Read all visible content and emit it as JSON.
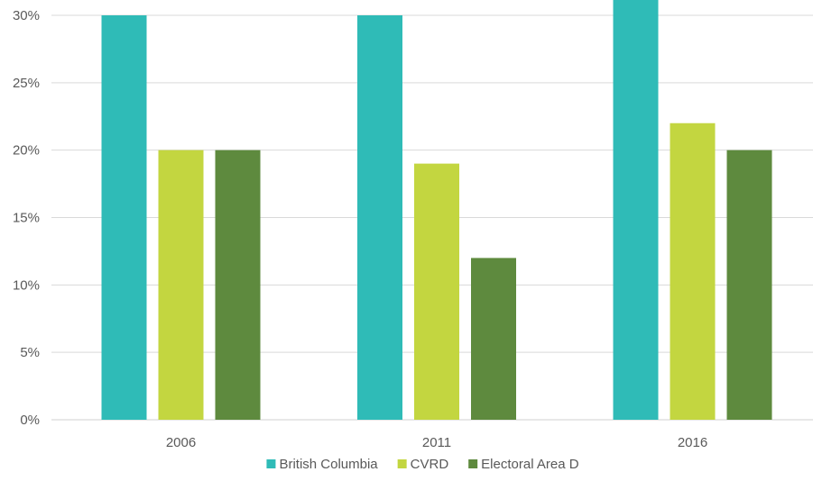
{
  "chart_data": {
    "type": "bar",
    "title": "",
    "xlabel": "",
    "ylabel": "",
    "categories": [
      "2006",
      "2011",
      "2016"
    ],
    "ylim": [
      0,
      30
    ],
    "yticks": [
      0,
      5,
      10,
      15,
      20,
      25,
      30
    ],
    "ytick_labels": [
      "0%",
      "5%",
      "10%",
      "15%",
      "20%",
      "25%",
      "30%"
    ],
    "grid": true,
    "legend_position": "bottom",
    "series": [
      {
        "name": "British Columbia",
        "values": [
          30,
          30,
          31.5
        ],
        "color": "#2fbbb7"
      },
      {
        "name": "CVRD",
        "values": [
          20,
          19,
          22
        ],
        "color": "#c3d640"
      },
      {
        "name": "Electoral Area D",
        "values": [
          20,
          12,
          20
        ],
        "color": "#5e8a3e"
      }
    ]
  }
}
